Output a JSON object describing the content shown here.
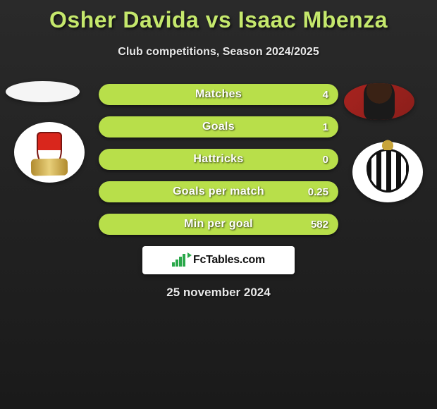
{
  "header": {
    "title": "Osher Davida vs Isaac Mbenza",
    "subtitle": "Club competitions, Season 2024/2025"
  },
  "colors": {
    "accent_fill": "#b8df4a",
    "bar_track": "#3a3a3a",
    "bar_border": "#4a4a4a",
    "text_light": "#e8e8e8",
    "title_color": "#c5e86c",
    "page_bg_top": "#2a2a2a",
    "page_bg_bottom": "#1a1a1a"
  },
  "players": {
    "left": {
      "name": "Osher Davida",
      "club_badge": "standard-liege-badge"
    },
    "right": {
      "name": "Isaac Mbenza",
      "club_badge": "charleroi-badge"
    }
  },
  "stats": [
    {
      "key": "matches",
      "label": "Matches",
      "right_value": "4",
      "fill_pct": 100
    },
    {
      "key": "goals",
      "label": "Goals",
      "right_value": "1",
      "fill_pct": 100
    },
    {
      "key": "hattricks",
      "label": "Hattricks",
      "right_value": "0",
      "fill_pct": 100
    },
    {
      "key": "gpm",
      "label": "Goals per match",
      "right_value": "0.25",
      "fill_pct": 100
    },
    {
      "key": "mpg",
      "label": "Min per goal",
      "right_value": "582",
      "fill_pct": 100
    }
  ],
  "brand": {
    "text": "FcTables.com"
  },
  "footer": {
    "date": "25 november 2024"
  }
}
